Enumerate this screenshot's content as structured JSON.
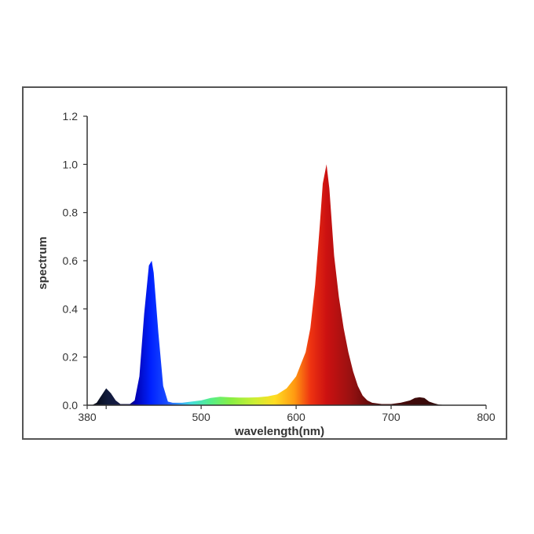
{
  "chart_data": {
    "type": "area",
    "xlabel": "wavelength(nm)",
    "ylabel": "spectrum",
    "xlim": [
      380,
      800
    ],
    "ylim": [
      0,
      1.2
    ],
    "x_ticks": [
      {
        "value": 380,
        "label": "380"
      },
      {
        "value": 500,
        "label": "500"
      },
      {
        "value": 600,
        "label": "600"
      },
      {
        "value": 700,
        "label": "700"
      },
      {
        "value": 800,
        "label": "800"
      }
    ],
    "x_minor_ticks": [
      400
    ],
    "y_ticks": [
      {
        "value": 0.0,
        "label": "0.0"
      },
      {
        "value": 0.2,
        "label": "0.2"
      },
      {
        "value": 0.4,
        "label": "0.4"
      },
      {
        "value": 0.6,
        "label": "0.6"
      },
      {
        "value": 0.8,
        "label": "0.8"
      },
      {
        "value": 1.0,
        "label": "1.0"
      },
      {
        "value": 1.2,
        "label": "1.2"
      }
    ],
    "grid": false,
    "series": [
      {
        "points": [
          [
            380,
            0.0
          ],
          [
            385,
            0.0
          ],
          [
            390,
            0.01
          ],
          [
            395,
            0.04
          ],
          [
            400,
            0.07
          ],
          [
            405,
            0.05
          ],
          [
            410,
            0.02
          ],
          [
            415,
            0.005
          ],
          [
            420,
            0.005
          ],
          [
            425,
            0.005
          ],
          [
            430,
            0.02
          ],
          [
            435,
            0.12
          ],
          [
            440,
            0.38
          ],
          [
            445,
            0.58
          ],
          [
            448,
            0.6
          ],
          [
            450,
            0.55
          ],
          [
            455,
            0.3
          ],
          [
            460,
            0.08
          ],
          [
            465,
            0.015
          ],
          [
            470,
            0.01
          ],
          [
            480,
            0.01
          ],
          [
            490,
            0.015
          ],
          [
            500,
            0.02
          ],
          [
            510,
            0.03
          ],
          [
            520,
            0.035
          ],
          [
            530,
            0.033
          ],
          [
            540,
            0.032
          ],
          [
            550,
            0.032
          ],
          [
            560,
            0.033
          ],
          [
            570,
            0.037
          ],
          [
            580,
            0.045
          ],
          [
            590,
            0.07
          ],
          [
            600,
            0.12
          ],
          [
            610,
            0.22
          ],
          [
            615,
            0.32
          ],
          [
            620,
            0.5
          ],
          [
            625,
            0.75
          ],
          [
            628,
            0.92
          ],
          [
            632,
            1.0
          ],
          [
            635,
            0.9
          ],
          [
            640,
            0.62
          ],
          [
            645,
            0.45
          ],
          [
            650,
            0.32
          ],
          [
            655,
            0.22
          ],
          [
            660,
            0.14
          ],
          [
            665,
            0.08
          ],
          [
            670,
            0.04
          ],
          [
            675,
            0.02
          ],
          [
            680,
            0.01
          ],
          [
            690,
            0.005
          ],
          [
            700,
            0.005
          ],
          [
            710,
            0.01
          ],
          [
            720,
            0.02
          ],
          [
            725,
            0.03
          ],
          [
            730,
            0.033
          ],
          [
            735,
            0.03
          ],
          [
            740,
            0.015
          ],
          [
            745,
            0.008
          ],
          [
            750,
            0.003
          ],
          [
            760,
            0.0
          ]
        ]
      }
    ]
  }
}
